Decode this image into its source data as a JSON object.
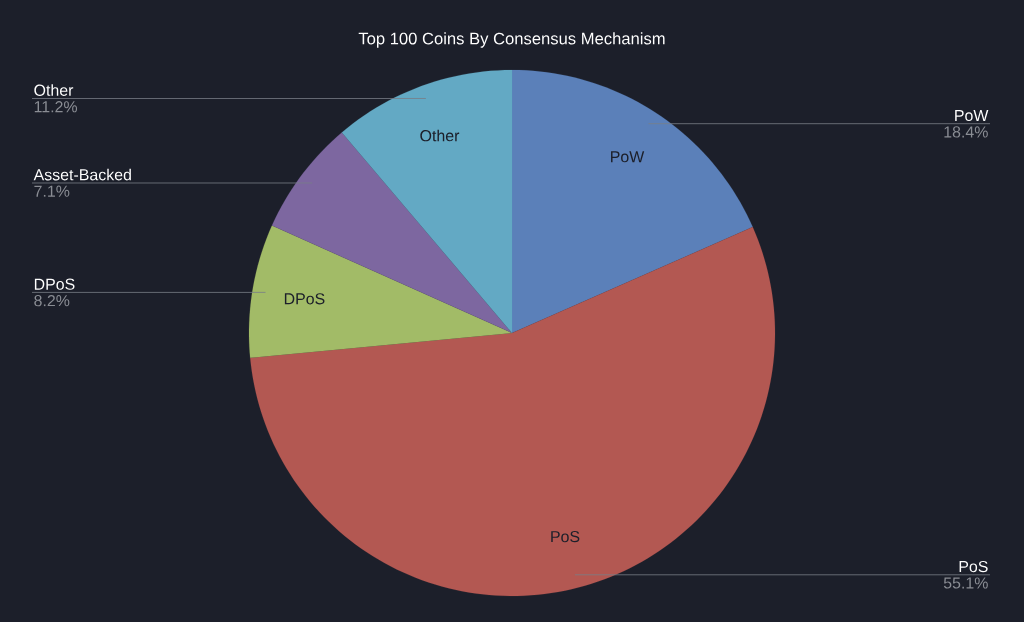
{
  "chart_data": {
    "type": "pie",
    "title": "Top 100 Coins By Consensus Mechanism",
    "categories": [
      "PoW",
      "PoS",
      "DPoS",
      "Asset-Backed",
      "Other"
    ],
    "values": [
      18.4,
      55.1,
      8.2,
      7.1,
      11.2
    ],
    "colors": [
      "#5b80b9",
      "#b35852",
      "#a2bb67",
      "#7d67a0",
      "#63a9c4"
    ],
    "value_labels": [
      "18.4%",
      "55.1%",
      "8.2%",
      "7.1%",
      "11.2%"
    ]
  }
}
